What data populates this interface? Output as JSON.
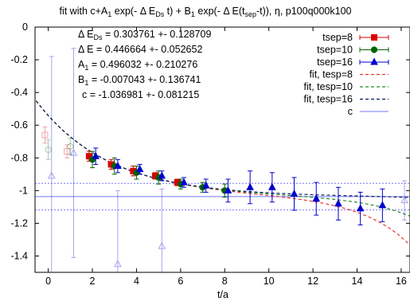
{
  "chart_data": {
    "type": "scatter",
    "title_parts": {
      "t1": "fit with c+A",
      "s1": "1",
      "t2": " exp(- Δ E",
      "s2": "Ds",
      "t3": " t) + B",
      "s3": "1",
      "t4": " exp(- Δ E(t",
      "s4": "sep",
      "t5": "-t)), η, p100q000k100"
    },
    "xlabel": "t/a",
    "ylabel": "",
    "xlim": [
      -0.6,
      16.4
    ],
    "ylim": [
      -1.5,
      0
    ],
    "xticks": [
      "0",
      "2",
      "4",
      "6",
      "8",
      "10",
      "12",
      "14",
      "16"
    ],
    "yticks": [
      "0",
      "-0.2",
      "-0.4",
      "-0.6",
      "-0.8",
      "-1",
      "-1.2",
      "-1.4"
    ],
    "grid": false,
    "legend_position": "top-right",
    "annotations": {
      "dE_Ds_prefix": "Δ E",
      "dE_Ds_sub": "Ds",
      "dE_Ds_value": " = 0.303761 +- 0.128709",
      "dE": "Δ E = 0.446664 +- 0.052652",
      "A1_prefix": "A",
      "A1_sub": "1",
      "A1_value": " = 0.496032 +- 0.210276",
      "B1_prefix": "B",
      "B1_sub": "1",
      "B1_value": " = -0.007043 +- 0.136741",
      "c": "c = -1.036981 +- 0.081215"
    },
    "legend": [
      {
        "label": "tsep=8",
        "color": "#dd0000",
        "style": "errorbar-square"
      },
      {
        "label": "tsep=10",
        "color": "#006400",
        "style": "errorbar-circle"
      },
      {
        "label": "tsep=16",
        "color": "#0000cc",
        "style": "errorbar-triangle"
      },
      {
        "label": "fit, tesp=8",
        "color": "#ee3333",
        "style": "dashed"
      },
      {
        "label": "fit, tesp=10",
        "color": "#228b22",
        "style": "dashed"
      },
      {
        "label": "fit, tesp=16",
        "color": "#0b1f5e",
        "style": "dashed"
      },
      {
        "label": "c",
        "color": "#7777ff",
        "style": "solid"
      }
    ],
    "series": [
      {
        "name": "tsep=8",
        "color": "#dd0000",
        "marker": "square",
        "x_offset": -0.15,
        "points": [
          {
            "x": 0,
            "y": -0.66,
            "err": 0.05,
            "excluded": true
          },
          {
            "x": 1,
            "y": -0.76,
            "err": 0.04,
            "excluded": true
          },
          {
            "x": 2,
            "y": -0.79,
            "err": 0.03
          },
          {
            "x": 3,
            "y": -0.84,
            "err": 0.03
          },
          {
            "x": 4,
            "y": -0.88,
            "err": 0.03
          },
          {
            "x": 5,
            "y": -0.91,
            "err": 0.02
          },
          {
            "x": 6,
            "y": -0.95,
            "err": 0.02
          }
        ]
      },
      {
        "name": "tsep=10",
        "color": "#006400",
        "marker": "circle",
        "x_offset": 0.0,
        "points": [
          {
            "x": 0,
            "y": -0.75,
            "err": 0.06,
            "excluded": true
          },
          {
            "x": 1,
            "y": -0.73,
            "err": 0.05,
            "excluded": true
          },
          {
            "x": 2,
            "y": -0.81,
            "err": 0.05
          },
          {
            "x": 3,
            "y": -0.85,
            "err": 0.05
          },
          {
            "x": 4,
            "y": -0.89,
            "err": 0.04
          },
          {
            "x": 5,
            "y": -0.92,
            "err": 0.04
          },
          {
            "x": 6,
            "y": -0.96,
            "err": 0.03
          },
          {
            "x": 7,
            "y": -0.98,
            "err": 0.03
          },
          {
            "x": 8,
            "y": -1.0,
            "err": 0.04
          }
        ]
      },
      {
        "name": "tsep=16",
        "color": "#0000cc",
        "marker": "triangle",
        "x_offset": 0.15,
        "points": [
          {
            "x": 0,
            "y": -0.91,
            "err": 0.73,
            "excluded": true
          },
          {
            "x": 1,
            "y": -0.77,
            "err": 0.64,
            "excluded": true
          },
          {
            "x": 2,
            "y": -0.79,
            "err": 0.05
          },
          {
            "x": 3,
            "y": -0.85,
            "err": 0.04
          },
          {
            "x": 4,
            "y": -0.87,
            "err": 0.03
          },
          {
            "x": 5,
            "y": -0.91,
            "err": 0.03
          },
          {
            "x": 6,
            "y": -0.95,
            "err": 0.03
          },
          {
            "x": 7,
            "y": -0.97,
            "err": 0.04
          },
          {
            "x": 8,
            "y": -1.0,
            "err": 0.07
          },
          {
            "x": 9,
            "y": -0.98,
            "err": 0.1
          },
          {
            "x": 10,
            "y": -0.98,
            "err": 0.09
          },
          {
            "x": 11,
            "y": -1.02,
            "err": 0.1
          },
          {
            "x": 12,
            "y": -1.05,
            "err": 0.1
          },
          {
            "x": 13,
            "y": -1.08,
            "err": 0.1
          },
          {
            "x": 14,
            "y": -1.11,
            "err": 0.1
          },
          {
            "x": 15,
            "y": -1.09,
            "err": 0.1
          }
        ]
      },
      {
        "name": "tsep=16, excluded",
        "color": "#0000cc",
        "marker": "triangle",
        "x_offset": 0.15,
        "points": [
          {
            "x": 3,
            "y": -1.45,
            "err": 0.45,
            "excluded": true
          },
          {
            "x": 5,
            "y": -1.34,
            "err": 0.35,
            "excluded": true
          },
          {
            "x": 16,
            "y": -1.06,
            "err": 0.12,
            "excluded": true
          }
        ]
      }
    ],
    "fits": [
      {
        "name": "fit, tesp=8",
        "color": "#ee3333",
        "A": 0.496032,
        "B": -0.007043,
        "c": -1.036981,
        "dE": 0.446664,
        "dEDs": 0.303761,
        "tsep": 8
      },
      {
        "name": "fit, tesp=10",
        "color": "#228b22",
        "A": 0.496032,
        "B": -0.007043,
        "c": -1.036981,
        "dE": 0.446664,
        "dEDs": 0.303761,
        "tsep": 10
      },
      {
        "name": "fit, tesp=16",
        "color": "#0b1f5e",
        "A": 0.496032,
        "B": -0.007043,
        "c": -1.036981,
        "dE": 0.446664,
        "dEDs": 0.303761,
        "tsep": 16
      }
    ],
    "constant": {
      "name": "c",
      "value": -1.036981,
      "err": 0.081215,
      "color": "#7777ff"
    }
  }
}
